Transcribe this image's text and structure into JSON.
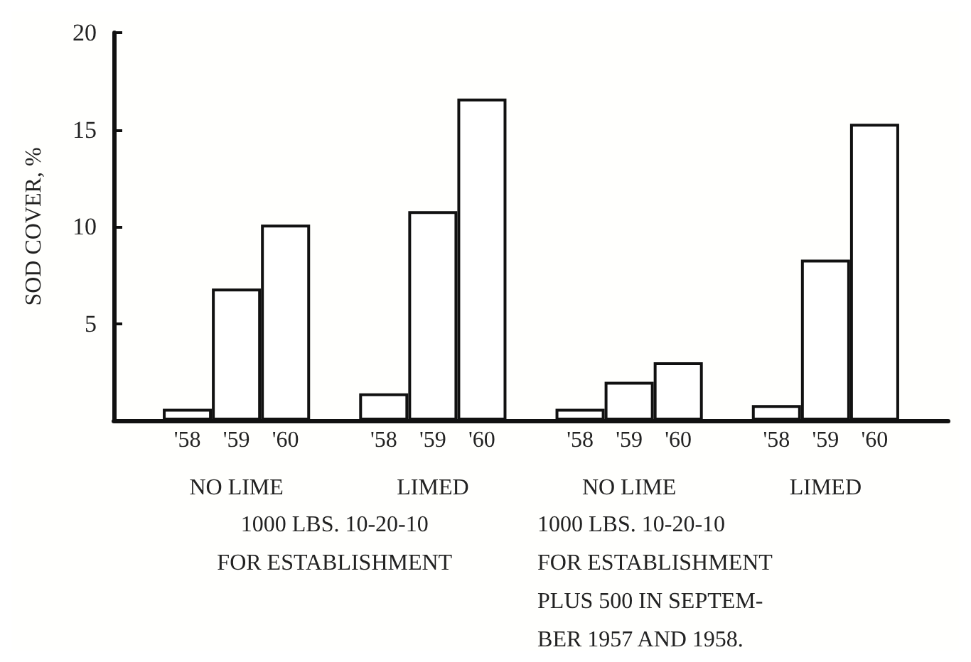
{
  "chart_data": {
    "type": "bar",
    "ylabel": "SOD COVER, %",
    "categories": [
      null,
      "'58",
      "'59",
      "'60",
      null,
      "'58",
      "'59",
      "'60",
      null,
      "'58",
      "'59",
      "'60",
      null,
      "'58",
      "'59",
      "'60",
      null
    ],
    "values": [
      null,
      0.6,
      6.8,
      10.1,
      null,
      1.4,
      10.8,
      16.6,
      null,
      0.6,
      2.0,
      3.0,
      null,
      0.8,
      8.3,
      15.3,
      null
    ],
    "color": "#ffffff",
    "ylim": [
      0,
      20
    ],
    "yticks": [
      5,
      10,
      15,
      20
    ],
    "grid": false,
    "annotations": [
      "NO LIME",
      "LIMED",
      "1000 LBS. 10-20-10\nFOR ESTABLISHMENT",
      "NO LIME",
      "LIMED",
      "1000 LBS. 10-20-10\nFOR ESTABLISHMENT\nPLUS 500 IN SEPTEM-\nBER 1957 AND 1958."
    ]
  }
}
